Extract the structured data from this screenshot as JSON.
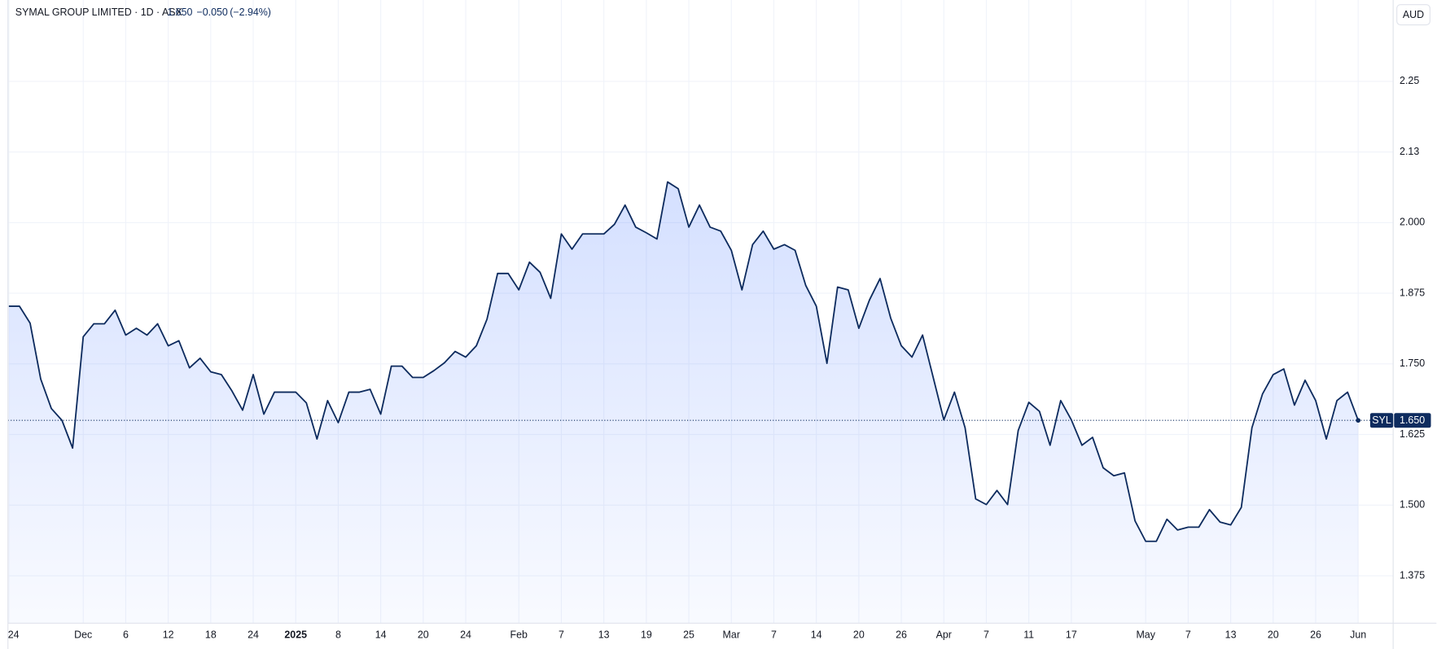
{
  "chart_data": {
    "type": "area",
    "title": "SYMAL GROUP LIMITED · 1D · ASX",
    "header_price": "1.650",
    "header_change": "−0.050",
    "header_change_pct": "(−2.94%)",
    "currency": "AUD",
    "grid": true,
    "categories": [
      "24",
      null,
      null,
      null,
      null,
      null,
      null,
      "Dec",
      null,
      null,
      null,
      "6",
      null,
      null,
      null,
      "12",
      null,
      null,
      null,
      "18",
      null,
      null,
      null,
      "24",
      null,
      null,
      null,
      "2025",
      null,
      null,
      null,
      "8",
      null,
      null,
      null,
      "14",
      null,
      null,
      null,
      "20",
      null,
      null,
      null,
      "24",
      null,
      null,
      null,
      null,
      "Feb",
      null,
      null,
      null,
      "7",
      null,
      null,
      null,
      "13",
      null,
      null,
      null,
      "19",
      null,
      null,
      null,
      "25",
      null,
      null,
      null,
      "Mar",
      null,
      null,
      null,
      "7",
      null,
      null,
      null,
      "14",
      null,
      null,
      null,
      "20",
      null,
      null,
      null,
      "26",
      null,
      null,
      null,
      "Apr",
      null,
      null,
      null,
      "7",
      null,
      null,
      null,
      "11",
      null,
      null,
      null,
      "17",
      null,
      null,
      null,
      null,
      null,
      null,
      "May",
      null,
      null,
      null,
      "7",
      null,
      null,
      null,
      "13",
      null,
      null,
      null,
      "20",
      null,
      null,
      null,
      "26",
      null,
      null,
      null,
      "Jun"
    ],
    "series": [
      {
        "name": "SYL",
        "color": "#0d2b5e",
        "values": [
          1.852,
          1.852,
          1.822,
          1.723,
          1.671,
          1.65,
          1.601,
          1.798,
          1.821,
          1.821,
          1.845,
          1.801,
          1.813,
          1.801,
          1.821,
          1.782,
          1.791,
          1.743,
          1.76,
          1.736,
          1.731,
          1.702,
          1.668,
          1.731,
          1.661,
          1.7,
          1.7,
          1.7,
          1.681,
          1.617,
          1.685,
          1.646,
          1.7,
          1.7,
          1.705,
          1.661,
          1.746,
          1.746,
          1.726,
          1.726,
          1.738,
          1.752,
          1.772,
          1.762,
          1.782,
          1.829,
          1.91,
          1.91,
          1.881,
          1.93,
          1.912,
          1.866,
          1.98,
          1.953,
          1.98,
          1.98,
          1.98,
          1.997,
          2.031,
          1.992,
          1.982,
          1.971,
          2.072,
          2.06,
          1.992,
          2.031,
          1.992,
          1.985,
          1.951,
          1.881,
          1.961,
          1.985,
          1.953,
          1.961,
          1.951,
          1.889,
          1.852,
          1.751,
          1.886,
          1.881,
          1.813,
          1.863,
          1.901,
          1.831,
          1.782,
          1.762,
          1.801,
          1.726,
          1.651,
          1.7,
          1.637,
          1.511,
          1.501,
          1.526,
          1.501,
          1.632,
          1.682,
          1.666,
          1.606,
          1.685,
          1.651,
          1.606,
          1.62,
          1.566,
          1.552,
          1.557,
          1.472,
          1.436,
          1.436,
          1.475,
          1.456,
          1.461,
          1.461,
          1.492,
          1.47,
          1.465,
          1.496,
          1.637,
          1.697,
          1.731,
          1.741,
          1.677,
          1.721,
          1.685,
          1.617,
          1.685,
          1.7,
          1.65
        ]
      }
    ],
    "last_price": {
      "value": 1.65,
      "label": "1.650"
    },
    "ylim": [
      1.291,
      2.394
    ],
    "yticks": [
      1.375,
      {
        "value": 1.5,
        "label": "1.500"
      },
      1.625,
      {
        "value": 1.75,
        "label": "1.750"
      },
      1.875,
      {
        "value": 2,
        "label": "2.000"
      },
      {
        "value": 2.125,
        "label": "2.13"
      },
      2.25
    ]
  }
}
